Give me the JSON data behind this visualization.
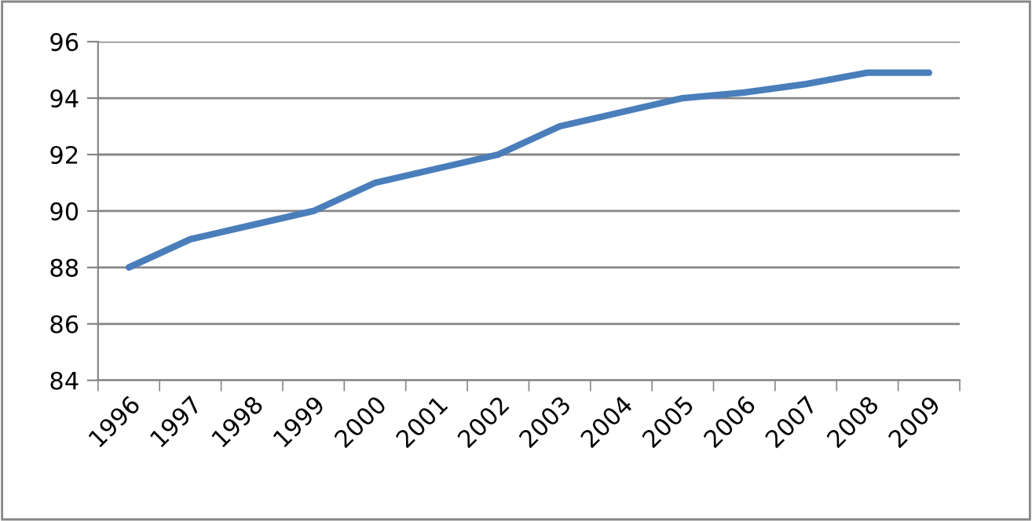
{
  "chart_data": {
    "type": "line",
    "categories": [
      "1996",
      "1997",
      "1998",
      "1999",
      "2000",
      "2001",
      "2002",
      "2003",
      "2004",
      "2005",
      "2006",
      "2007",
      "2008",
      "2009"
    ],
    "series": [
      {
        "color": "#4a7ebb",
        "values": [
          88,
          89,
          89.5,
          90,
          91,
          91.5,
          92,
          93,
          93.5,
          94,
          94.2,
          94.5,
          94.9,
          94.9
        ]
      }
    ],
    "ylim": [
      84,
      96
    ],
    "yticks": [
      84,
      86,
      88,
      90,
      92,
      94,
      96
    ],
    "grid": "y",
    "marker": "none",
    "line_style": "solid"
  }
}
